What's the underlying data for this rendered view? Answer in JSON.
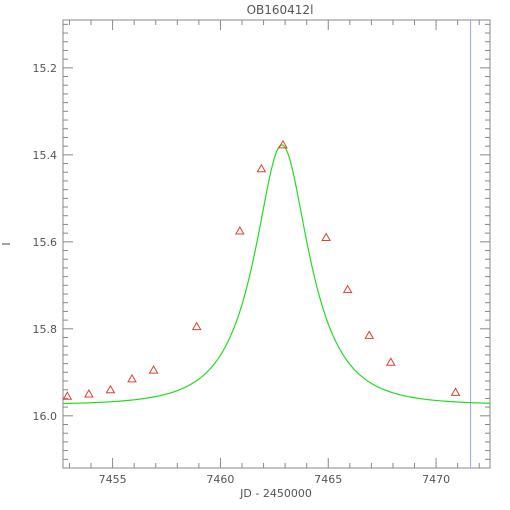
{
  "chart_data": {
    "type": "scatter",
    "title": "OB160412l",
    "xlabel": "JD - 2450000",
    "ylabel": "I",
    "xlim": [
      7452.7,
      7472.5
    ],
    "ylim": [
      16.12,
      15.09
    ],
    "y_inverted": true,
    "x_ticks": [
      7455,
      7460,
      7465,
      7470
    ],
    "x_tick_labels": [
      "7455",
      "7460",
      "7465",
      "7470"
    ],
    "y_ticks": [
      15.2,
      15.4,
      15.6,
      15.8,
      16.0
    ],
    "y_tick_labels": [
      "15.2",
      "15.4",
      "15.6",
      "15.8",
      "16.0"
    ],
    "grid": false,
    "series": [
      {
        "kind": "points",
        "marker": "triangle",
        "color": "#e0402c",
        "x": [
          7452.9,
          7453.9,
          7454.9,
          7455.9,
          7456.9,
          7458.9,
          7460.9,
          7461.9,
          7462.9,
          7464.9,
          7465.9,
          7466.9,
          7467.9,
          7470.9
        ],
        "y": [
          15.955,
          15.95,
          15.94,
          15.915,
          15.895,
          15.795,
          15.575,
          15.432,
          15.377,
          15.59,
          15.71,
          15.815,
          15.877,
          15.946
        ]
      },
      {
        "kind": "model",
        "color": "#22dd22",
        "t0": 7462.85,
        "tE": 2.45,
        "u0": 0.55,
        "base_mag": 15.975
      }
    ],
    "marker_line": {
      "x": 7471.6,
      "color": "#9aa2ee"
    }
  }
}
